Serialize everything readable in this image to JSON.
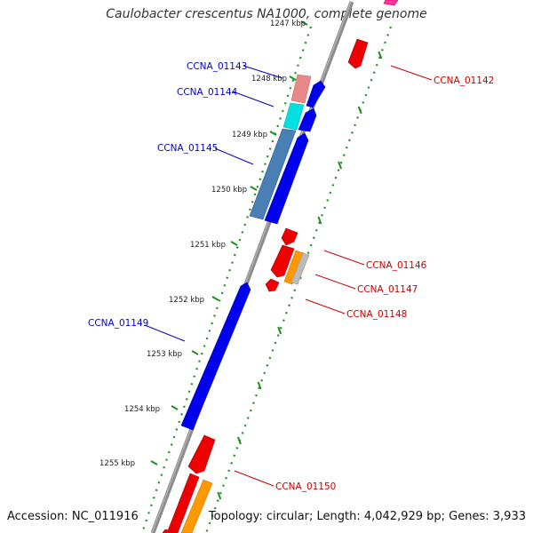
{
  "title": "Caulobacter crescentus NA1000, complete genome",
  "footer": {
    "accession": "Accession: NC_011916",
    "topology": "Topology: circular; Length: 4,042,929 bp; Genes: 3,933"
  },
  "colors": {
    "backbone": "#8c8c8c",
    "tick_track": "#1e8f1e",
    "forward_label": "#0000cc",
    "reverse_label": "#cc0000"
  },
  "ticks": [
    {
      "label": "1247 kbp"
    },
    {
      "label": "1248 kbp"
    },
    {
      "label": "1249 kbp"
    },
    {
      "label": "1250 kbp"
    },
    {
      "label": "1251 kbp"
    },
    {
      "label": "1252 kbp"
    },
    {
      "label": "1253 kbp"
    },
    {
      "label": "1254 kbp"
    },
    {
      "label": "1255 kbp"
    }
  ],
  "gene_labels": [
    {
      "name": "CCNA_01142",
      "strand": "reverse"
    },
    {
      "name": "CCNA_01143",
      "strand": "forward"
    },
    {
      "name": "CCNA_01144",
      "strand": "forward"
    },
    {
      "name": "CCNA_01145",
      "strand": "forward"
    },
    {
      "name": "CCNA_01146",
      "strand": "reverse"
    },
    {
      "name": "CCNA_01147",
      "strand": "reverse"
    },
    {
      "name": "CCNA_01148",
      "strand": "reverse"
    },
    {
      "name": "CCNA_01149",
      "strand": "forward"
    },
    {
      "name": "CCNA_01150",
      "strand": "reverse"
    }
  ]
}
